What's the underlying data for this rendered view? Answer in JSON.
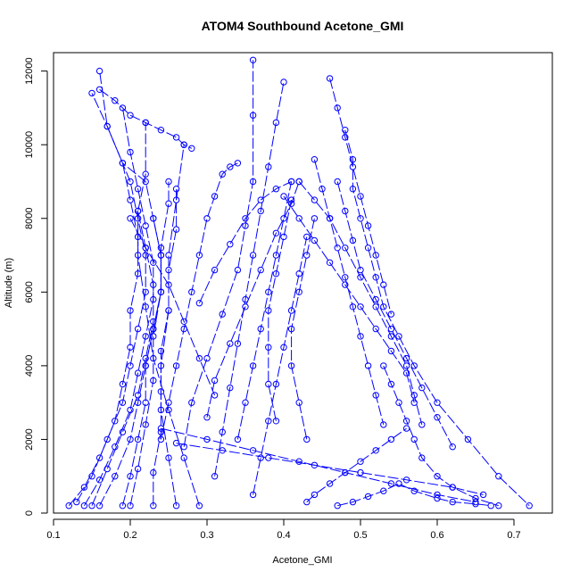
{
  "chart_data": {
    "type": "scatter",
    "title": "ATOM4 Southbound Acetone_GMI",
    "xlabel": "Acetone_GMI",
    "ylabel": "Altitude (m)",
    "xlim": [
      0.1,
      0.75
    ],
    "ylim": [
      0,
      12500
    ],
    "xticks": [
      "0.1",
      "0.2",
      "0.3",
      "0.4",
      "0.5",
      "0.6",
      "0.7"
    ],
    "xtick_values": [
      0.1,
      0.2,
      0.3,
      0.4,
      0.5,
      0.6,
      0.7
    ],
    "yticks": [
      "0",
      "2000",
      "4000",
      "6000",
      "8000",
      "10000",
      "12000"
    ],
    "ytick_values": [
      0,
      2000,
      4000,
      6000,
      8000,
      10000,
      12000
    ],
    "grid": false,
    "marker": "open-circle",
    "line_style": "dashed",
    "color": "#0000ff",
    "series": [
      {
        "x": [
          0.12,
          0.14,
          0.16,
          0.18,
          0.19,
          0.2,
          0.2,
          0.21,
          0.21,
          0.2,
          0.19,
          0.17,
          0.16
        ],
        "y": [
          200,
          700,
          1500,
          2500,
          3500,
          4500,
          5500,
          6500,
          7500,
          8500,
          9500,
          10500,
          12000
        ]
      },
      {
        "x": [
          0.13,
          0.15,
          0.17,
          0.19,
          0.2,
          0.21,
          0.22,
          0.22,
          0.21,
          0.2,
          0.17,
          0.15
        ],
        "y": [
          300,
          1000,
          2000,
          3000,
          4000,
          5000,
          6000,
          7000,
          8000,
          9000,
          10500,
          11400
        ]
      },
      {
        "x": [
          0.14,
          0.16,
          0.18,
          0.2,
          0.21,
          0.22,
          0.23,
          0.23,
          0.22,
          0.21,
          0.2,
          0.19
        ],
        "y": [
          200,
          900,
          1800,
          2800,
          3800,
          4800,
          5800,
          6800,
          7800,
          8800,
          9800,
          11000
        ]
      },
      {
        "x": [
          0.15,
          0.17,
          0.19,
          0.21,
          0.22,
          0.23,
          0.23,
          0.22,
          0.21,
          0.22,
          0.22
        ],
        "y": [
          200,
          1200,
          2200,
          3200,
          4200,
          5200,
          6200,
          7200,
          8200,
          9200,
          10600
        ]
      },
      {
        "x": [
          0.16,
          0.18,
          0.2,
          0.21,
          0.22,
          0.23,
          0.24,
          0.24,
          0.23,
          0.22,
          0.19
        ],
        "y": [
          200,
          1000,
          2000,
          3000,
          4000,
          5000,
          6000,
          7000,
          8000,
          9000,
          9500
        ]
      },
      {
        "x": [
          0.19,
          0.2,
          0.21,
          0.22,
          0.22,
          0.23,
          0.24,
          0.24,
          0.23
        ],
        "y": [
          200,
          1000,
          2000,
          3000,
          4000,
          5000,
          6000,
          7000,
          8000
        ]
      },
      {
        "x": [
          0.2,
          0.21,
          0.22,
          0.23,
          0.23,
          0.24,
          0.24,
          0.25,
          0.25
        ],
        "y": [
          200,
          1200,
          2400,
          3600,
          4800,
          6000,
          7200,
          8400,
          9000
        ]
      },
      {
        "x": [
          0.23,
          0.23,
          0.24,
          0.24,
          0.24,
          0.25,
          0.25,
          0.26,
          0.26
        ],
        "y": [
          200,
          1100,
          2200,
          3300,
          4400,
          5500,
          6600,
          7700,
          8800
        ]
      },
      {
        "x": [
          0.26,
          0.25,
          0.24,
          0.24,
          0.25,
          0.25,
          0.26,
          0.27
        ],
        "y": [
          200,
          1500,
          2800,
          4000,
          5500,
          7000,
          8500,
          10000
        ]
      },
      {
        "x": [
          0.29,
          0.27,
          0.25,
          0.23,
          0.22,
          0.21,
          0.21
        ],
        "y": [
          200,
          1500,
          2800,
          4200,
          5600,
          7000,
          8200
        ]
      },
      {
        "x": [
          0.16,
          0.18,
          0.2,
          0.22,
          0.24,
          0.26,
          0.27,
          0.28
        ],
        "y": [
          11500,
          11200,
          10800,
          10600,
          10400,
          10200,
          10000,
          9900
        ]
      },
      {
        "x": [
          0.24,
          0.25,
          0.26,
          0.27,
          0.28,
          0.29,
          0.3,
          0.31,
          0.32,
          0.33,
          0.34
        ],
        "y": [
          2000,
          3000,
          4000,
          5000,
          6000,
          7000,
          8000,
          8600,
          9200,
          9400,
          9500
        ]
      },
      {
        "x": [
          0.27,
          0.28,
          0.3,
          0.32,
          0.34,
          0.35,
          0.36,
          0.36,
          0.36
        ],
        "y": [
          1800,
          3000,
          4200,
          5400,
          6600,
          7800,
          9000,
          10800,
          12300
        ]
      },
      {
        "x": [
          0.31,
          0.32,
          0.33,
          0.34,
          0.35,
          0.36,
          0.37,
          0.38,
          0.39,
          0.4
        ],
        "y": [
          1000,
          2200,
          3400,
          4600,
          5800,
          7000,
          8200,
          9400,
          10600,
          11700
        ]
      },
      {
        "x": [
          0.3,
          0.31,
          0.33,
          0.35,
          0.37,
          0.39,
          0.41,
          0.42
        ],
        "y": [
          2600,
          3600,
          4600,
          5600,
          6600,
          7600,
          8400,
          9000
        ]
      },
      {
        "x": [
          0.34,
          0.35,
          0.36,
          0.37,
          0.38,
          0.39,
          0.4,
          0.41
        ],
        "y": [
          2000,
          3000,
          4000,
          5000,
          6000,
          7000,
          8000,
          9000
        ]
      },
      {
        "x": [
          0.36,
          0.37,
          0.38,
          0.39,
          0.4,
          0.41,
          0.42,
          0.43
        ],
        "y": [
          500,
          1500,
          2500,
          3500,
          4500,
          5500,
          6500,
          7500
        ]
      },
      {
        "x": [
          0.39,
          0.38,
          0.38,
          0.38,
          0.39,
          0.4,
          0.41
        ],
        "y": [
          2500,
          3500,
          4500,
          5500,
          6500,
          7500,
          8500
        ]
      },
      {
        "x": [
          0.43,
          0.42,
          0.41,
          0.41,
          0.42,
          0.43,
          0.44
        ],
        "y": [
          2000,
          3000,
          4000,
          5000,
          6000,
          7000,
          8000
        ]
      },
      {
        "x": [
          0.42,
          0.44,
          0.46,
          0.48,
          0.5,
          0.52,
          0.54,
          0.56,
          0.57,
          0.58
        ],
        "y": [
          9000,
          8500,
          8000,
          7200,
          6400,
          5600,
          4800,
          4000,
          3200,
          2400
        ]
      },
      {
        "x": [
          0.47,
          0.48,
          0.49,
          0.5,
          0.52,
          0.54,
          0.56,
          0.58,
          0.6,
          0.62
        ],
        "y": [
          9000,
          8200,
          7400,
          6600,
          5800,
          5000,
          4200,
          3400,
          2600,
          1800
        ]
      },
      {
        "x": [
          0.46,
          0.47,
          0.48,
          0.49,
          0.5,
          0.51,
          0.52,
          0.53,
          0.54
        ],
        "y": [
          11800,
          11000,
          10200,
          9400,
          8600,
          7800,
          7000,
          6200,
          5400
        ]
      },
      {
        "x": [
          0.48,
          0.49,
          0.49,
          0.5,
          0.51,
          0.52,
          0.53,
          0.55,
          0.57,
          0.6,
          0.64,
          0.68,
          0.72
        ],
        "y": [
          10400,
          9600,
          8800,
          8000,
          7200,
          6400,
          5600,
          4800,
          4000,
          3000,
          2000,
          1000,
          200
        ]
      },
      {
        "x": [
          0.44,
          0.45,
          0.46,
          0.47,
          0.48,
          0.49,
          0.5,
          0.51,
          0.52,
          0.53
        ],
        "y": [
          9600,
          8800,
          8000,
          7200,
          6400,
          5600,
          4800,
          4000,
          3200,
          2400
        ]
      },
      {
        "x": [
          0.4,
          0.42,
          0.44,
          0.46,
          0.48,
          0.5,
          0.52,
          0.54,
          0.56,
          0.57
        ],
        "y": [
          8600,
          8000,
          7400,
          6800,
          6200,
          5600,
          5000,
          4400,
          3800,
          3000
        ]
      },
      {
        "x": [
          0.53,
          0.54,
          0.55,
          0.56,
          0.57,
          0.58,
          0.6,
          0.62,
          0.65,
          0.68
        ],
        "y": [
          4000,
          3500,
          3000,
          2500,
          2000,
          1500,
          1000,
          700,
          400,
          200
        ]
      },
      {
        "x": [
          0.26,
          0.32,
          0.38,
          0.44,
          0.5,
          0.56,
          0.62,
          0.66
        ],
        "y": [
          1900,
          1700,
          1500,
          1300,
          1100,
          900,
          700,
          500
        ]
      },
      {
        "x": [
          0.24,
          0.3,
          0.36,
          0.42,
          0.48,
          0.54,
          0.6,
          0.65
        ],
        "y": [
          2300,
          2000,
          1700,
          1400,
          1100,
          800,
          500,
          300
        ]
      },
      {
        "x": [
          0.43,
          0.44,
          0.46,
          0.48,
          0.5,
          0.52,
          0.54,
          0.56
        ],
        "y": [
          300,
          500,
          800,
          1100,
          1400,
          1700,
          2000,
          2300
        ]
      },
      {
        "x": [
          0.47,
          0.49,
          0.51,
          0.53,
          0.55,
          0.57,
          0.6,
          0.62,
          0.65,
          0.67
        ],
        "y": [
          200,
          300,
          450,
          600,
          800,
          600,
          400,
          300,
          250,
          200
        ]
      },
      {
        "x": [
          0.29,
          0.31,
          0.33,
          0.35,
          0.37,
          0.39,
          0.41
        ],
        "y": [
          5700,
          6600,
          7300,
          8000,
          8500,
          8800,
          9000
        ]
      },
      {
        "x": [
          0.2,
          0.22,
          0.25,
          0.27,
          0.29,
          0.31
        ],
        "y": [
          8000,
          7200,
          6200,
          5200,
          4200,
          3200
        ]
      }
    ]
  }
}
